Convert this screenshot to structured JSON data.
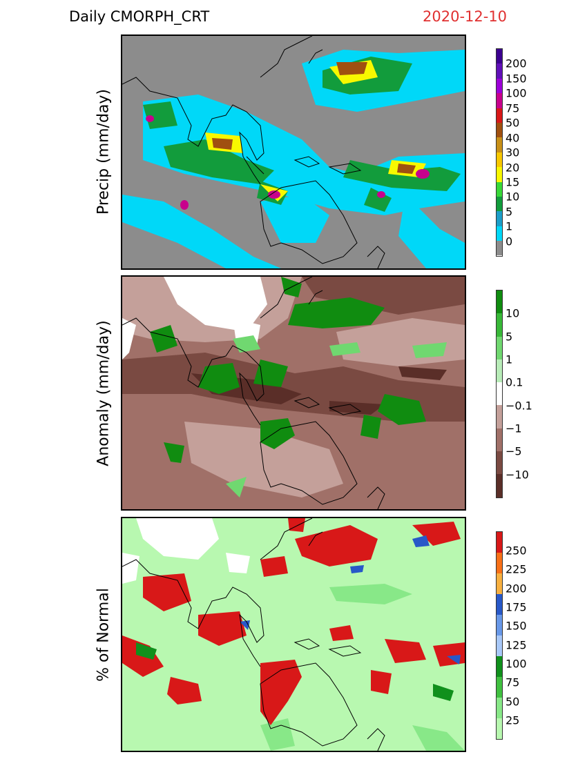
{
  "header": {
    "title": "Daily CMORPH_CRT",
    "date": "2020-12-10"
  },
  "panels": [
    {
      "ylabel": "Precip (mm/day)",
      "legend": {
        "labels": [
          "0",
          "1",
          "5",
          "10",
          "15",
          "20",
          "30",
          "40",
          "50",
          "75",
          "100",
          "150",
          "200"
        ],
        "colors": [
          "#8c8c8c",
          "#00d8f8",
          "#1c9ec8",
          "#129c3c",
          "#38d838",
          "#f8f800",
          "#f8c800",
          "#c89018",
          "#a05010",
          "#d81818",
          "#c8008c",
          "#9c00d8",
          "#6010b8",
          "#3c0090"
        ]
      }
    },
    {
      "ylabel": "Anomaly (mm/day)",
      "legend": {
        "labels": [
          "−10",
          "−5",
          "−1",
          "−0.1",
          "0.1",
          "1",
          "5",
          "10"
        ],
        "colors": [
          "#5a2e28",
          "#7a4a42",
          "#a07068",
          "#c4a09a",
          "#ffffff",
          "#b8ecb8",
          "#70d870",
          "#38b838",
          "#108c10"
        ]
      }
    },
    {
      "ylabel": "% of Normal",
      "legend": {
        "labels": [
          "25",
          "50",
          "75",
          "100",
          "125",
          "150",
          "175",
          "200",
          "225",
          "250"
        ],
        "colors": [
          "#b8f8b0",
          "#88e888",
          "#40c040",
          "#10901c",
          "#a8c8f8",
          "#6898e8",
          "#2858c8",
          "#f8b040",
          "#f87018",
          "#d81818"
        ]
      }
    }
  ]
}
